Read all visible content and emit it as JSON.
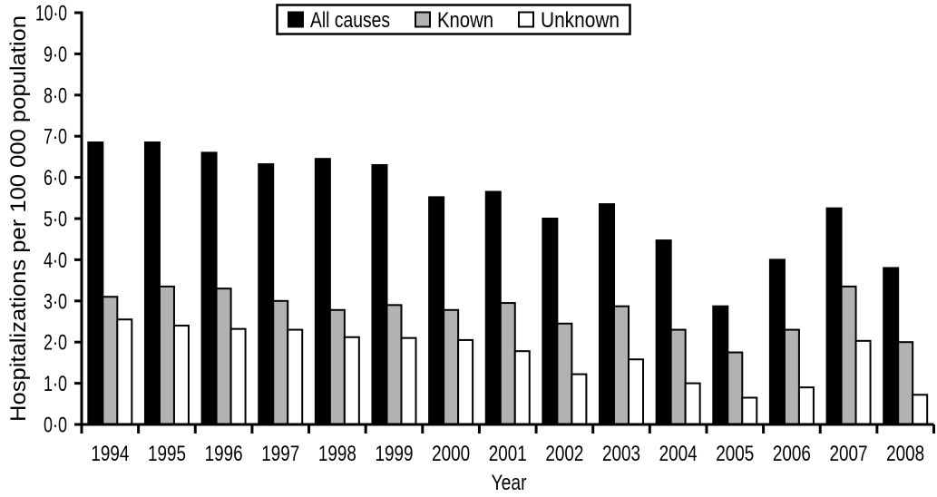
{
  "chart_data": {
    "type": "bar",
    "title": "",
    "xlabel": "Year",
    "ylabel": "Hospitalizations per 100 000 population",
    "ylim": [
      0,
      10
    ],
    "ytick_step": 1.0,
    "ytick_labels": [
      "0·0",
      "1·0",
      "2·0",
      "3·0",
      "4·0",
      "5·0",
      "6·0",
      "7·0",
      "8·0",
      "9·0",
      "10·0"
    ],
    "decimal_separator": "·",
    "grid": false,
    "legend_position": "top-center",
    "axis_color": "#000000",
    "background_color": "#ffffff",
    "categories": [
      "1994",
      "1995",
      "1996",
      "1997",
      "1998",
      "1999",
      "2000",
      "2001",
      "2002",
      "2003",
      "2004",
      "2005",
      "2006",
      "2007",
      "2008"
    ],
    "series": [
      {
        "name": "All causes",
        "color": "#000000",
        "values": [
          6.85,
          6.85,
          6.6,
          6.32,
          6.45,
          6.3,
          5.52,
          5.65,
          5.0,
          5.35,
          4.47,
          2.87,
          4.0,
          5.25,
          3.8
        ]
      },
      {
        "name": "Known",
        "color": "#b2b2b2",
        "values": [
          3.1,
          3.35,
          3.3,
          3.0,
          2.78,
          2.9,
          2.78,
          2.95,
          2.45,
          2.87,
          2.3,
          1.75,
          2.3,
          3.35,
          2.0
        ]
      },
      {
        "name": "Unknown",
        "color": "#ffffff",
        "values": [
          2.55,
          2.4,
          2.32,
          2.3,
          2.12,
          2.1,
          2.05,
          1.78,
          1.22,
          1.58,
          1.0,
          0.65,
          0.9,
          2.03,
          0.72
        ]
      }
    ]
  }
}
